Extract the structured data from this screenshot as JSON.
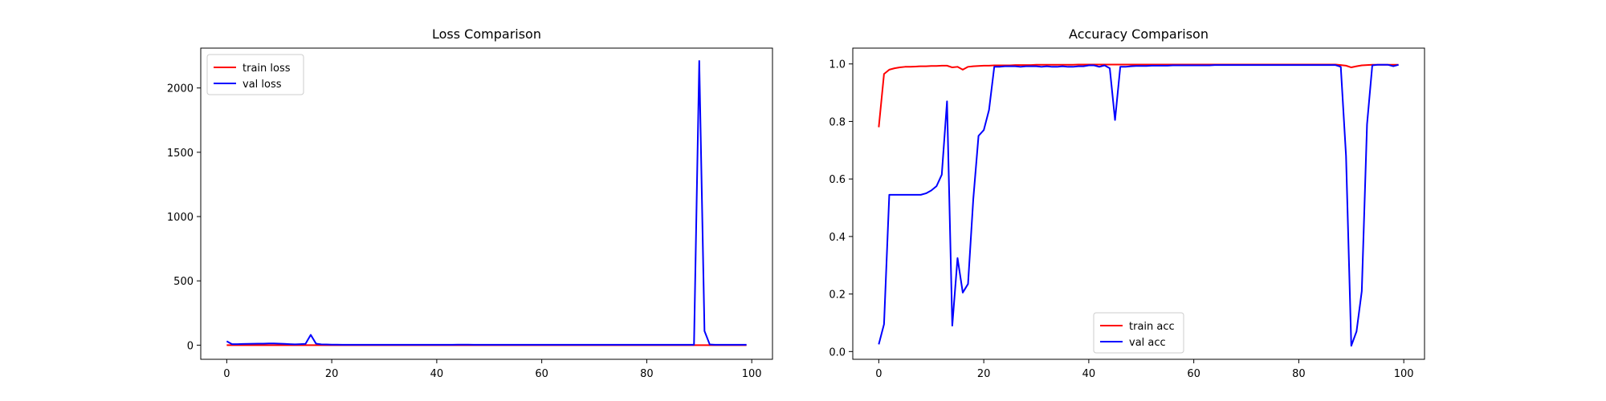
{
  "chart_data": [
    {
      "type": "line",
      "title": "Loss Comparison",
      "xlabel": "",
      "ylabel": "",
      "xlim": [
        -4.95,
        103.95
      ],
      "ylim": [
        -110,
        2310
      ],
      "xticks": [
        0,
        20,
        40,
        60,
        80,
        100
      ],
      "yticks": [
        0,
        500,
        1000,
        1500,
        2000
      ],
      "grid": false,
      "legend_position": "upper left",
      "series": [
        {
          "name": "train loss",
          "color": "#ff0000",
          "x": [
            0,
            10,
            20,
            30,
            40,
            50,
            60,
            70,
            80,
            90,
            99
          ],
          "y": [
            0,
            0,
            0,
            0,
            0,
            0,
            0,
            0,
            0,
            0,
            0
          ]
        },
        {
          "name": "val loss",
          "color": "#0000ff",
          "x": [
            0,
            1,
            2,
            3,
            4,
            5,
            6,
            7,
            8,
            9,
            10,
            11,
            12,
            13,
            14,
            15,
            16,
            17,
            18,
            19,
            20,
            21,
            22,
            23,
            24,
            25,
            26,
            27,
            28,
            29,
            30,
            31,
            32,
            33,
            34,
            35,
            36,
            37,
            38,
            39,
            40,
            41,
            42,
            43,
            44,
            45,
            46,
            47,
            48,
            49,
            50,
            51,
            52,
            53,
            54,
            55,
            56,
            57,
            58,
            59,
            60,
            61,
            62,
            63,
            64,
            65,
            66,
            67,
            68,
            69,
            70,
            71,
            72,
            73,
            74,
            75,
            76,
            77,
            78,
            79,
            80,
            81,
            82,
            83,
            84,
            85,
            86,
            87,
            88,
            89,
            90,
            91,
            92,
            93,
            94,
            95,
            96,
            97,
            98,
            99
          ],
          "y": [
            30,
            8,
            8,
            9,
            10,
            11,
            12,
            12,
            13,
            13,
            12,
            10,
            8,
            6,
            8,
            10,
            80,
            12,
            6,
            5,
            4,
            4,
            3,
            3,
            3,
            3,
            3,
            3,
            3,
            3,
            3,
            3,
            3,
            3,
            3,
            3,
            3,
            3,
            3,
            3,
            3,
            3,
            3,
            3,
            4,
            4,
            4,
            3,
            3,
            3,
            3,
            3,
            3,
            3,
            3,
            3,
            3,
            3,
            3,
            3,
            3,
            3,
            3,
            3,
            3,
            3,
            3,
            3,
            3,
            3,
            3,
            3,
            3,
            3,
            3,
            3,
            3,
            3,
            3,
            3,
            3,
            3,
            3,
            3,
            3,
            3,
            3,
            3,
            3,
            3,
            2210,
            110,
            5,
            3,
            3,
            3,
            3,
            3,
            3,
            3
          ]
        }
      ]
    },
    {
      "type": "line",
      "title": "Accuracy Comparison",
      "xlabel": "",
      "ylabel": "",
      "xlim": [
        -4.95,
        103.95
      ],
      "ylim": [
        -0.027,
        1.055
      ],
      "xticks": [
        0,
        20,
        40,
        60,
        80,
        100
      ],
      "yticks": [
        0.0,
        0.2,
        0.4,
        0.6,
        0.8,
        1.0
      ],
      "grid": false,
      "legend_position": "lower center",
      "series": [
        {
          "name": "train acc",
          "color": "#ff0000",
          "x": [
            0,
            1,
            2,
            3,
            4,
            5,
            6,
            7,
            8,
            9,
            10,
            11,
            12,
            13,
            14,
            15,
            16,
            17,
            18,
            19,
            20,
            21,
            22,
            23,
            24,
            25,
            26,
            27,
            28,
            29,
            30,
            31,
            32,
            33,
            34,
            35,
            36,
            37,
            38,
            39,
            40,
            41,
            42,
            43,
            44,
            45,
            46,
            47,
            48,
            49,
            50,
            51,
            52,
            53,
            54,
            55,
            56,
            57,
            58,
            59,
            60,
            61,
            62,
            63,
            64,
            65,
            66,
            67,
            68,
            69,
            70,
            71,
            72,
            73,
            74,
            75,
            76,
            77,
            78,
            79,
            80,
            81,
            82,
            83,
            84,
            85,
            86,
            87,
            88,
            89,
            90,
            91,
            92,
            93,
            94,
            95,
            96,
            97,
            98,
            99
          ],
          "y": [
            0.78,
            0.965,
            0.98,
            0.985,
            0.988,
            0.99,
            0.99,
            0.991,
            0.992,
            0.992,
            0.993,
            0.993,
            0.994,
            0.994,
            0.988,
            0.99,
            0.98,
            0.99,
            0.992,
            0.993,
            0.994,
            0.994,
            0.995,
            0.995,
            0.995,
            0.995,
            0.996,
            0.996,
            0.996,
            0.996,
            0.997,
            0.997,
            0.997,
            0.997,
            0.997,
            0.997,
            0.997,
            0.997,
            0.998,
            0.998,
            0.998,
            0.998,
            0.998,
            0.998,
            0.998,
            0.998,
            0.998,
            0.998,
            0.998,
            0.998,
            0.998,
            0.998,
            0.998,
            0.998,
            0.998,
            0.998,
            0.998,
            0.998,
            0.998,
            0.998,
            0.998,
            0.998,
            0.998,
            0.998,
            0.998,
            0.998,
            0.998,
            0.998,
            0.998,
            0.998,
            0.998,
            0.998,
            0.998,
            0.998,
            0.998,
            0.998,
            0.998,
            0.998,
            0.998,
            0.998,
            0.998,
            0.998,
            0.998,
            0.998,
            0.998,
            0.998,
            0.998,
            0.998,
            0.996,
            0.994,
            0.988,
            0.992,
            0.995,
            0.996,
            0.997,
            0.997,
            0.997,
            0.997,
            0.997,
            0.997
          ]
        },
        {
          "name": "val acc",
          "color": "#0000ff",
          "x": [
            0,
            1,
            2,
            3,
            4,
            5,
            6,
            7,
            8,
            9,
            10,
            11,
            12,
            13,
            14,
            15,
            16,
            17,
            18,
            19,
            20,
            21,
            22,
            23,
            24,
            25,
            26,
            27,
            28,
            29,
            30,
            31,
            32,
            33,
            34,
            35,
            36,
            37,
            38,
            39,
            40,
            41,
            42,
            43,
            44,
            45,
            46,
            47,
            48,
            49,
            50,
            51,
            52,
            53,
            54,
            55,
            56,
            57,
            58,
            59,
            60,
            61,
            62,
            63,
            64,
            65,
            66,
            67,
            68,
            69,
            70,
            71,
            72,
            73,
            74,
            75,
            76,
            77,
            78,
            79,
            80,
            81,
            82,
            83,
            84,
            85,
            86,
            87,
            88,
            89,
            90,
            91,
            92,
            93,
            94,
            95,
            96,
            97,
            98,
            99
          ],
          "y": [
            0.025,
            0.095,
            0.545,
            0.545,
            0.545,
            0.545,
            0.545,
            0.545,
            0.545,
            0.55,
            0.56,
            0.575,
            0.615,
            0.87,
            0.09,
            0.325,
            0.205,
            0.235,
            0.53,
            0.75,
            0.77,
            0.84,
            0.99,
            0.99,
            0.992,
            0.992,
            0.992,
            0.99,
            0.992,
            0.992,
            0.992,
            0.99,
            0.992,
            0.99,
            0.99,
            0.992,
            0.99,
            0.99,
            0.992,
            0.992,
            0.995,
            0.995,
            0.99,
            0.995,
            0.985,
            0.805,
            0.99,
            0.99,
            0.992,
            0.993,
            0.993,
            0.993,
            0.994,
            0.994,
            0.994,
            0.994,
            0.995,
            0.995,
            0.995,
            0.995,
            0.995,
            0.995,
            0.995,
            0.995,
            0.996,
            0.996,
            0.996,
            0.996,
            0.996,
            0.996,
            0.996,
            0.996,
            0.996,
            0.996,
            0.996,
            0.996,
            0.996,
            0.996,
            0.996,
            0.996,
            0.996,
            0.996,
            0.996,
            0.996,
            0.996,
            0.996,
            0.996,
            0.996,
            0.99,
            0.68,
            0.02,
            0.07,
            0.21,
            0.79,
            0.995,
            0.997,
            0.997,
            0.997,
            0.992,
            0.997
          ]
        }
      ]
    }
  ]
}
